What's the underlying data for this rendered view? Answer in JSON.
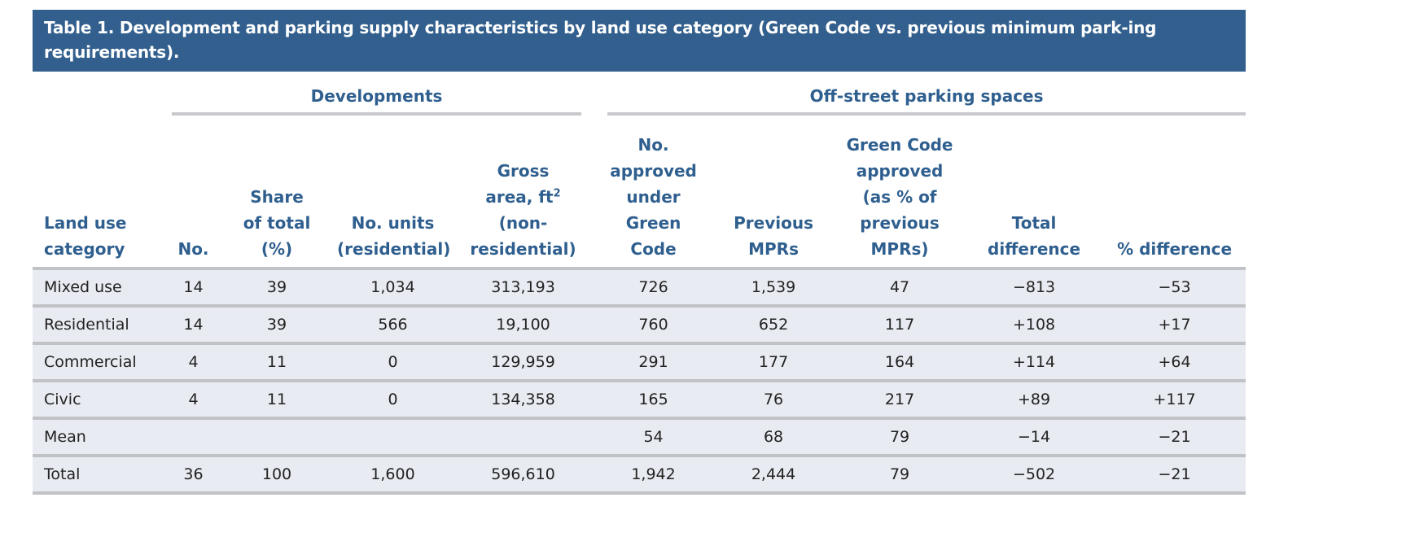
{
  "caption": "Table 1. Development and parking supply characteristics by land use category (Green Code vs. previous minimum park-ing requirements).",
  "groups": {
    "developments": "Developments",
    "parking": "Off-street parking spaces"
  },
  "columns": {
    "category": [
      "Land use",
      "category"
    ],
    "no": "No.",
    "share": [
      "Share",
      "of total",
      "(%)"
    ],
    "units": [
      "No. units",
      "(residential)"
    ],
    "gross": [
      "Gross",
      "area, ft",
      "2",
      "(non-",
      "residential)"
    ],
    "approved": [
      "No.",
      "approved",
      "under",
      "Green",
      "Code"
    ],
    "previous": [
      "Previous",
      "MPRs"
    ],
    "gc_pct": [
      "Green Code",
      "approved",
      "(as % of",
      "previous",
      "MPRs)"
    ],
    "total_diff": [
      "Total",
      "difference"
    ],
    "pct_diff": "% difference"
  },
  "rows": [
    [
      "Mixed use",
      "14",
      "39",
      "1,034",
      "313,193",
      "726",
      "1,539",
      "47",
      "−813",
      "−53"
    ],
    [
      "Residential",
      "14",
      "39",
      "566",
      "19,100",
      "760",
      "652",
      "117",
      "+108",
      "+17"
    ],
    [
      "Commercial",
      "4",
      "11",
      "0",
      "129,959",
      "291",
      "177",
      "164",
      "+114",
      "+64"
    ],
    [
      "Civic",
      "4",
      "11",
      "0",
      "134,358",
      "165",
      "76",
      "217",
      "+89",
      "+117"
    ],
    [
      "Mean",
      "",
      "",
      "",
      "",
      "54",
      "68",
      "79",
      "−14",
      "−21"
    ],
    [
      "Total",
      "36",
      "100",
      "1,600",
      "596,610",
      "1,942",
      "2,444",
      "79",
      "−502",
      "−21"
    ]
  ],
  "colors": {
    "header_bg": "#325f8d",
    "header_text": "#2f5f8f",
    "row_bg": "#e8ebf1"
  }
}
